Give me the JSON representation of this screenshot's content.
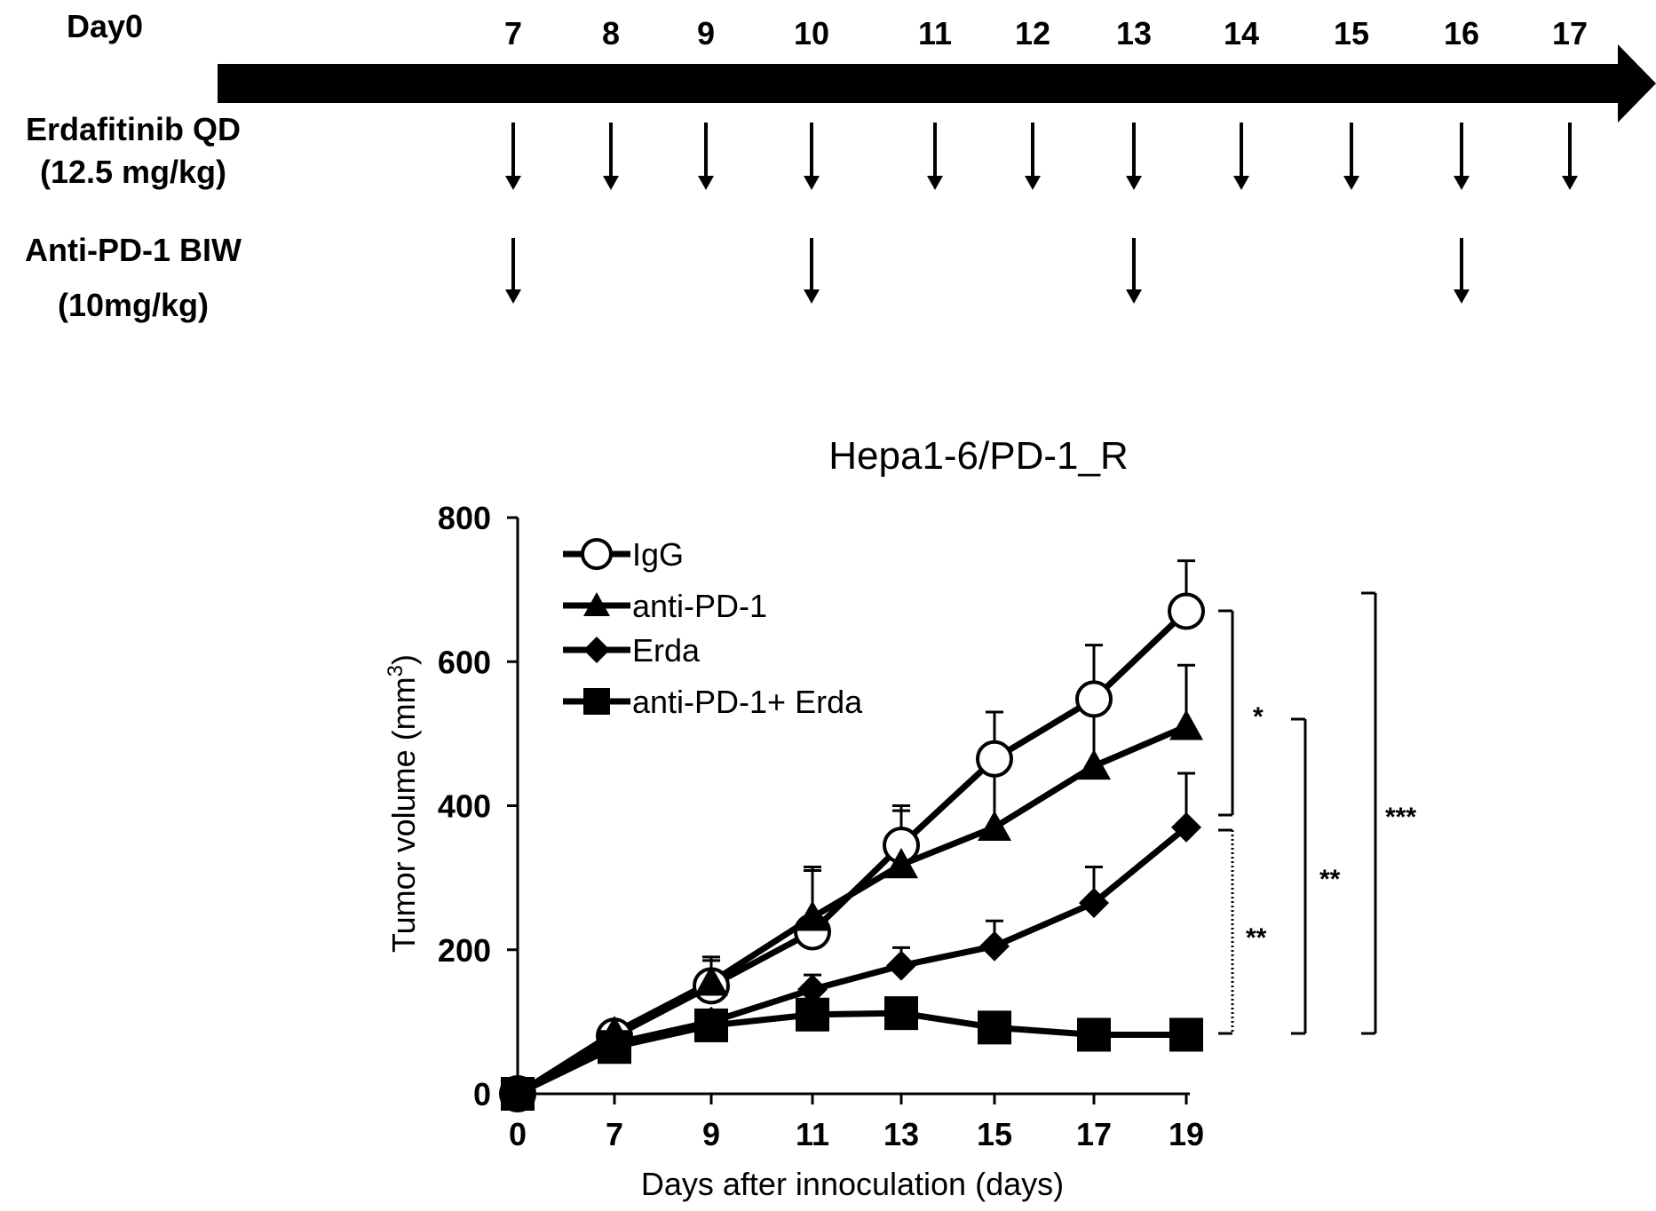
{
  "schedule": {
    "day0_label": "Day0",
    "days": [
      "7",
      "8",
      "9",
      "10",
      "11",
      "12",
      "13",
      "14",
      "15",
      "16",
      "17"
    ],
    "rows": [
      {
        "line1": "Erdafitinib QD",
        "line2": "(12.5 mg/kg)",
        "dose_days": [
          "7",
          "8",
          "9",
          "10",
          "11",
          "12",
          "13",
          "14",
          "15",
          "16",
          "17"
        ]
      },
      {
        "line1": "Anti-PD-1 BIW",
        "line2": "(10mg/kg)",
        "dose_days": [
          "7",
          "10",
          "13",
          "16"
        ]
      }
    ]
  },
  "chart_data": {
    "type": "line",
    "title": "Hepa1-6/PD-1_R",
    "xlabel": "Days after innoculation (days)",
    "ylabel_main": "Tumor volume (mm",
    "ylabel_sup": "3",
    "ylabel_tail": ")",
    "x": [
      0,
      7,
      9,
      11,
      13,
      15,
      17,
      19
    ],
    "x_tick_labels": [
      "0",
      "7",
      "9",
      "11",
      "13",
      "15",
      "17",
      "19"
    ],
    "y_ticks": [
      0,
      200,
      400,
      600,
      800
    ],
    "ylim": [
      0,
      800
    ],
    "grid": false,
    "legend_position": "top-left",
    "series": [
      {
        "name": "IgG",
        "marker": "circle-open",
        "values": [
          0,
          80,
          150,
          225,
          345,
          465,
          548,
          670
        ],
        "errors": [
          0,
          10,
          40,
          85,
          55,
          65,
          75,
          70
        ]
      },
      {
        "name": "anti-PD-1",
        "marker": "triangle",
        "values": [
          0,
          85,
          155,
          245,
          318,
          370,
          455,
          510
        ],
        "errors": [
          0,
          10,
          30,
          70,
          75,
          85,
          105,
          85
        ]
      },
      {
        "name": "Erda",
        "marker": "diamond",
        "values": [
          0,
          70,
          100,
          145,
          178,
          205,
          265,
          370
        ],
        "errors": [
          0,
          10,
          15,
          20,
          25,
          35,
          50,
          75
        ]
      },
      {
        "name": "anti-PD-1+ Erda",
        "marker": "square",
        "values": [
          0,
          65,
          95,
          110,
          112,
          92,
          82,
          82
        ],
        "errors": [
          0,
          8,
          10,
          12,
          10,
          10,
          8,
          15
        ]
      }
    ],
    "significance": [
      {
        "label": "*"
      },
      {
        "label": "**"
      },
      {
        "label": "**"
      },
      {
        "label": "***"
      }
    ]
  }
}
